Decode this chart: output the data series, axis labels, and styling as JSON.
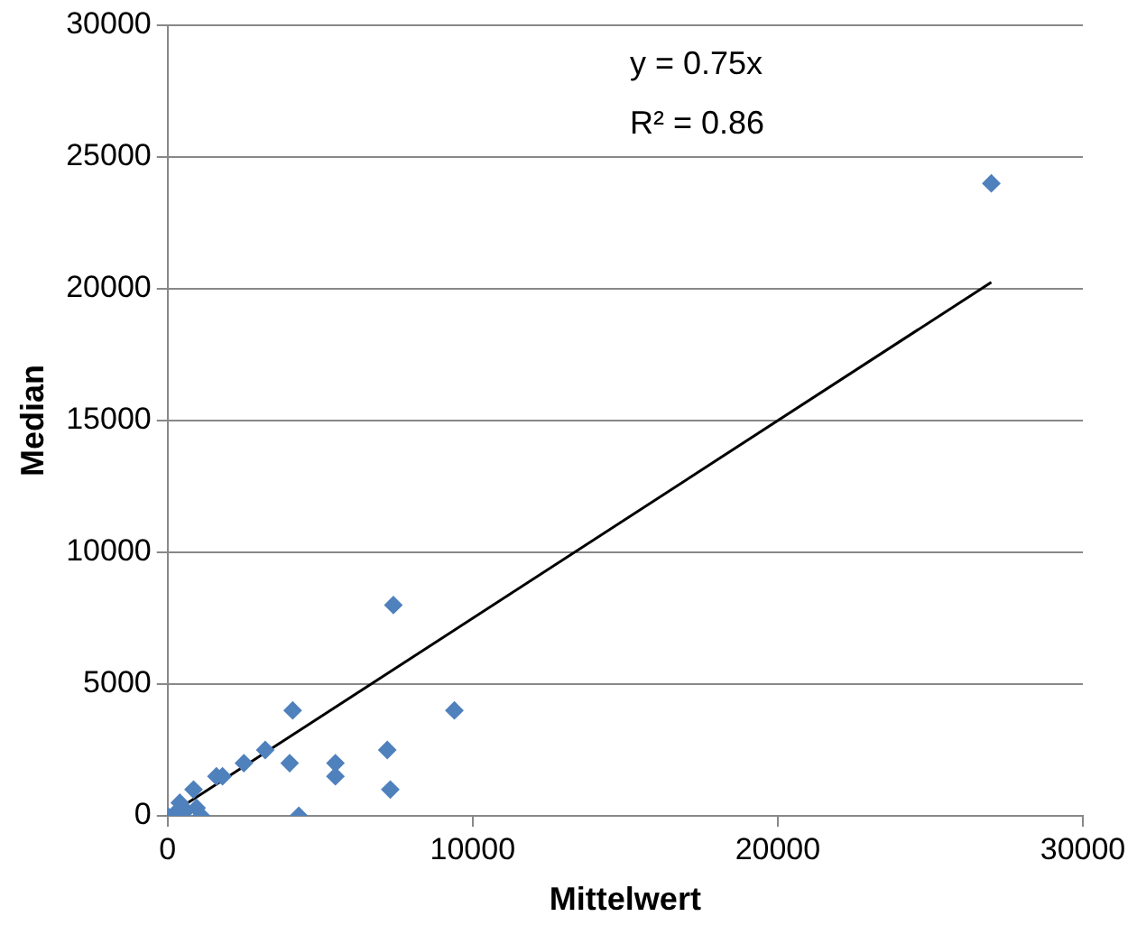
{
  "chart_data": {
    "type": "scatter",
    "xlabel": "Mittelwert",
    "ylabel": "Median",
    "xlim": [
      0,
      30000
    ],
    "xticks": [
      0,
      10000,
      20000,
      30000
    ],
    "ylim": [
      0,
      30000
    ],
    "yticks": [
      0,
      5000,
      10000,
      15000,
      20000,
      25000,
      30000
    ],
    "grid": "y",
    "legend": false,
    "marker": "diamond",
    "annotations": [
      "y = 0.75x",
      "R² = 0.86"
    ],
    "series": [
      {
        "color": "#4f81bd",
        "x": [
          27000,
          7400,
          4100,
          9400,
          3200,
          2500,
          4000,
          5500,
          5500,
          7200,
          7300,
          4300,
          1600,
          1800,
          850,
          950,
          1100,
          400,
          0,
          200,
          600
        ],
        "values": [
          24000,
          8000,
          4000,
          4000,
          2500,
          2000,
          2000,
          2000,
          1500,
          2500,
          1000,
          0,
          1500,
          1500,
          1000,
          300,
          0,
          500,
          0,
          50,
          200
        ]
      },
      {
        "type": "line",
        "color": "#000000",
        "marker": "none",
        "x": [
          0,
          27000
        ],
        "values": [
          0,
          20250
        ]
      }
    ]
  }
}
